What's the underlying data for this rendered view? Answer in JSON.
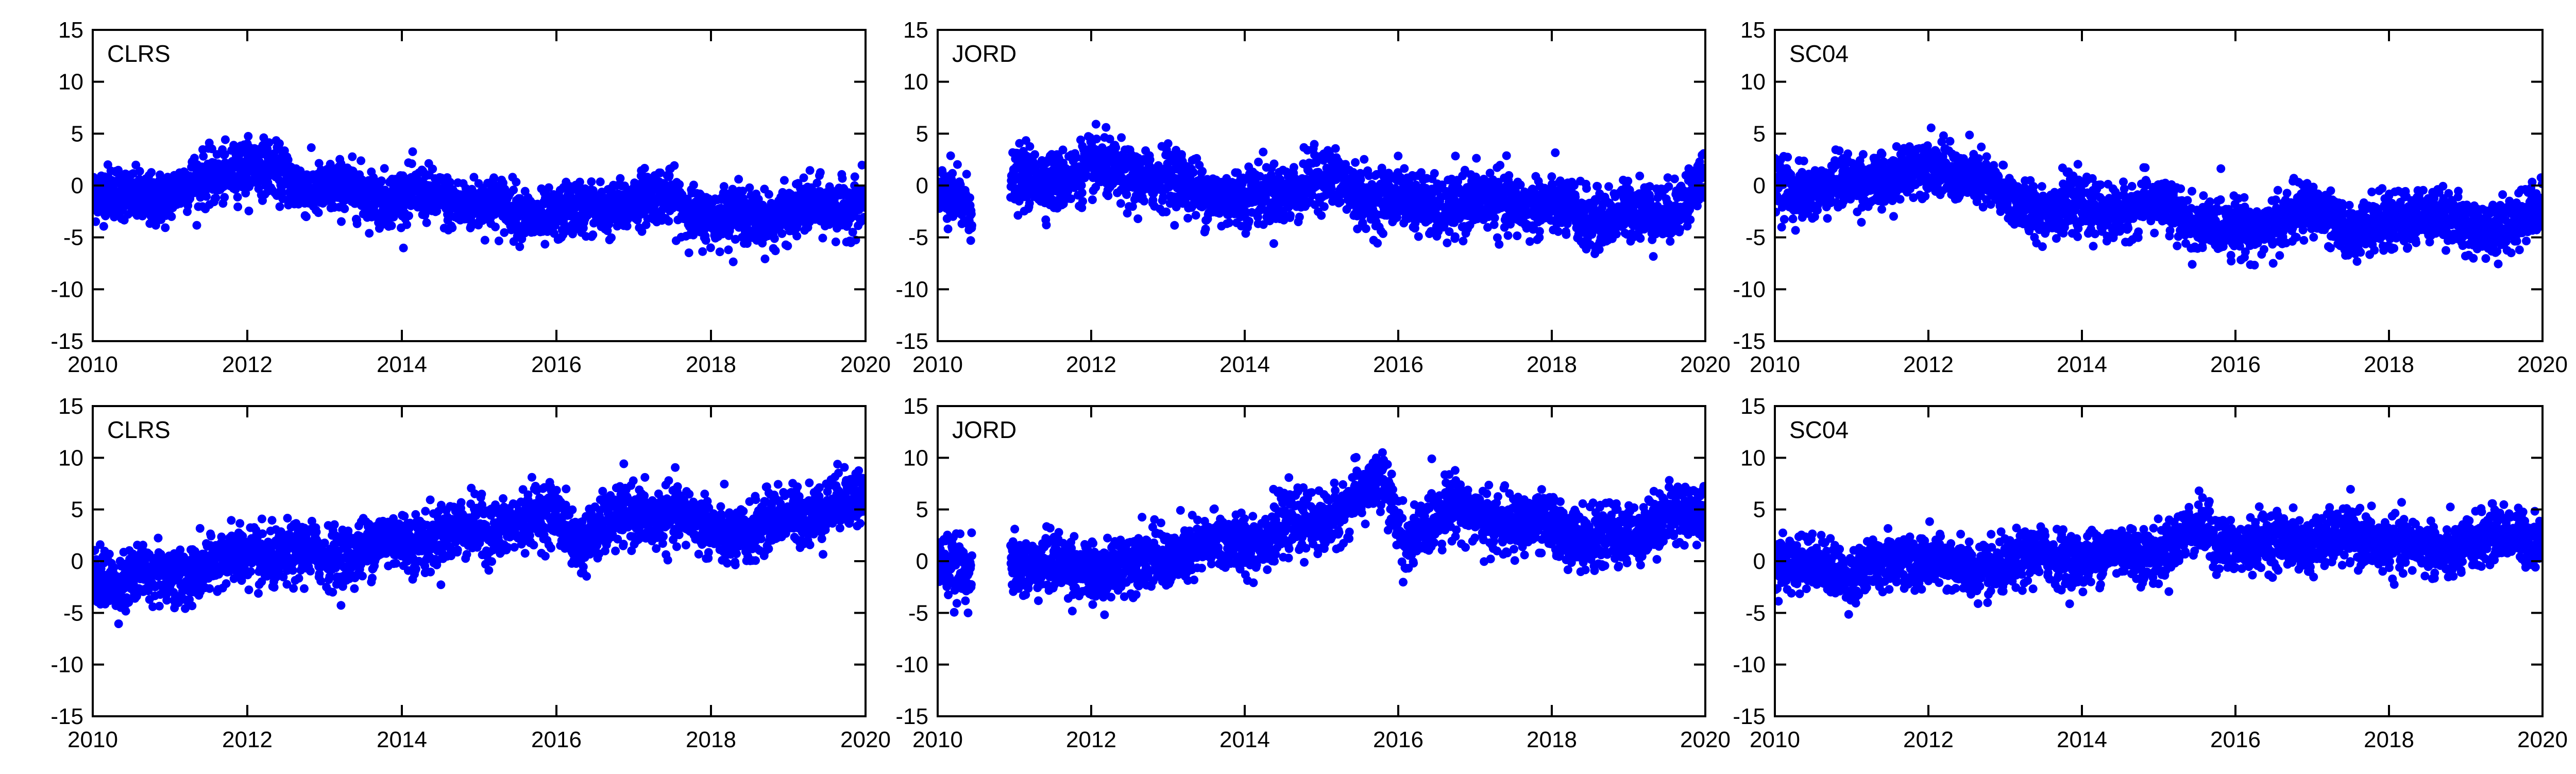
{
  "chart_data": [
    {
      "type": "scatter",
      "label": "CLRS",
      "xlim": [
        2010,
        2020
      ],
      "ylim": [
        -15,
        15
      ],
      "xticks": [
        "2010",
        "2012",
        "2014",
        "2016",
        "2018",
        "2020"
      ],
      "yticks": [
        "15",
        "10",
        "5",
        "0",
        "-5",
        "-10",
        "-15"
      ],
      "color": "#0000ff",
      "gaps": [],
      "trend": [
        [
          2010.0,
          -1.0
        ],
        [
          2011.0,
          -1.0
        ],
        [
          2011.9,
          2.0
        ],
        [
          2012.5,
          0.8
        ],
        [
          2013.0,
          -0.5
        ],
        [
          2014.0,
          -1.0
        ],
        [
          2014.8,
          -1.5
        ],
        [
          2015.5,
          -2.5
        ],
        [
          2016.0,
          -3.0
        ],
        [
          2017.0,
          -1.5
        ],
        [
          2017.5,
          -1.2
        ],
        [
          2018.0,
          -3.2
        ],
        [
          2019.0,
          -2.8
        ],
        [
          2020.0,
          -1.5
        ]
      ],
      "spread": 1.8
    },
    {
      "type": "scatter",
      "label": "JORD",
      "xlim": [
        2010,
        2020
      ],
      "ylim": [
        -15,
        15
      ],
      "xticks": [
        "2010",
        "2012",
        "2014",
        "2016",
        "2018",
        "2020"
      ],
      "yticks": [
        "15",
        "10",
        "5",
        "0",
        "-5",
        "-10",
        "-15"
      ],
      "color": "#0000ff",
      "gaps": [
        [
          2010.45,
          2010.95
        ]
      ],
      "trend": [
        [
          2010.0,
          -1.5
        ],
        [
          2010.4,
          -2.0
        ],
        [
          2011.0,
          0.0
        ],
        [
          2012.0,
          1.5
        ],
        [
          2013.0,
          0.5
        ],
        [
          2014.0,
          -1.5
        ],
        [
          2015.0,
          0.5
        ],
        [
          2015.7,
          -1.0
        ],
        [
          2016.5,
          -2.0
        ],
        [
          2017.5,
          -1.5
        ],
        [
          2018.5,
          -3.0
        ],
        [
          2019.5,
          -2.5
        ],
        [
          2020.0,
          0.5
        ]
      ],
      "spread": 2.0
    },
    {
      "type": "scatter",
      "label": "SC04",
      "xlim": [
        2010,
        2020
      ],
      "ylim": [
        -15,
        15
      ],
      "xticks": [
        "2010",
        "2012",
        "2014",
        "2016",
        "2018",
        "2020"
      ],
      "yticks": [
        "15",
        "10",
        "5",
        "0",
        "-5",
        "-10",
        "-15"
      ],
      "color": "#0000ff",
      "gaps": [],
      "trend": [
        [
          2010.0,
          -0.5
        ],
        [
          2011.0,
          0.0
        ],
        [
          2012.0,
          1.8
        ],
        [
          2012.6,
          1.0
        ],
        [
          2013.0,
          -1.5
        ],
        [
          2014.0,
          -2.5
        ],
        [
          2015.0,
          -2.0
        ],
        [
          2015.5,
          -3.5
        ],
        [
          2016.0,
          -4.5
        ],
        [
          2017.0,
          -2.5
        ],
        [
          2017.5,
          -4.0
        ],
        [
          2018.0,
          -4.0
        ],
        [
          2018.5,
          -2.0
        ],
        [
          2019.0,
          -4.5
        ],
        [
          2020.0,
          -2.5
        ]
      ],
      "spread": 1.8
    },
    {
      "type": "scatter",
      "label": "CLRS",
      "xlim": [
        2010,
        2020
      ],
      "ylim": [
        -15,
        15
      ],
      "xticks": [
        "2010",
        "2012",
        "2014",
        "2016",
        "2018",
        "2020"
      ],
      "yticks": [
        "15",
        "10",
        "5",
        "0",
        "-5",
        "-10",
        "-15"
      ],
      "color": "#0000ff",
      "gaps": [],
      "trend": [
        [
          2010.0,
          -1.5
        ],
        [
          2011.0,
          -1.5
        ],
        [
          2012.0,
          0.5
        ],
        [
          2013.0,
          0.5
        ],
        [
          2014.0,
          2.0
        ],
        [
          2015.0,
          3.0
        ],
        [
          2016.0,
          4.5
        ],
        [
          2016.3,
          2.0
        ],
        [
          2017.0,
          4.5
        ],
        [
          2017.5,
          4.5
        ],
        [
          2018.0,
          3.0
        ],
        [
          2018.5,
          2.5
        ],
        [
          2019.0,
          4.5
        ],
        [
          2020.0,
          6.0
        ]
      ],
      "spread": 2.0
    },
    {
      "type": "scatter",
      "label": "JORD",
      "xlim": [
        2010,
        2020
      ],
      "ylim": [
        -15,
        15
      ],
      "xticks": [
        "2010",
        "2012",
        "2014",
        "2016",
        "2018",
        "2020"
      ],
      "yticks": [
        "15",
        "10",
        "5",
        "0",
        "-5",
        "-10",
        "-15"
      ],
      "color": "#0000ff",
      "gaps": [
        [
          2010.45,
          2010.95
        ]
      ],
      "trend": [
        [
          2010.0,
          0.5
        ],
        [
          2010.4,
          -1.0
        ],
        [
          2011.0,
          0.0
        ],
        [
          2012.0,
          -1.0
        ],
        [
          2013.0,
          0.5
        ],
        [
          2014.0,
          2.0
        ],
        [
          2015.0,
          4.0
        ],
        [
          2015.8,
          7.5
        ],
        [
          2016.1,
          2.0
        ],
        [
          2016.8,
          5.5
        ],
        [
          2017.5,
          3.0
        ],
        [
          2018.0,
          4.0
        ],
        [
          2018.5,
          1.5
        ],
        [
          2019.0,
          3.0
        ],
        [
          2020.0,
          5.0
        ]
      ],
      "spread": 2.0
    },
    {
      "type": "scatter",
      "label": "SC04",
      "xlim": [
        2010,
        2020
      ],
      "ylim": [
        -15,
        15
      ],
      "xticks": [
        "2010",
        "2012",
        "2014",
        "2016",
        "2018",
        "2020"
      ],
      "yticks": [
        "15",
        "10",
        "5",
        "0",
        "-5",
        "-10",
        "-15"
      ],
      "color": "#0000ff",
      "gaps": [],
      "trend": [
        [
          2010.0,
          0.0
        ],
        [
          2011.0,
          -1.0
        ],
        [
          2012.0,
          0.5
        ],
        [
          2012.6,
          -1.5
        ],
        [
          2013.0,
          0.0
        ],
        [
          2014.0,
          0.5
        ],
        [
          2015.0,
          1.0
        ],
        [
          2015.5,
          3.0
        ],
        [
          2016.0,
          1.5
        ],
        [
          2017.0,
          2.0
        ],
        [
          2018.0,
          2.0
        ],
        [
          2018.7,
          0.5
        ],
        [
          2019.0,
          2.0
        ],
        [
          2020.0,
          2.5
        ]
      ],
      "spread": 1.8
    }
  ]
}
